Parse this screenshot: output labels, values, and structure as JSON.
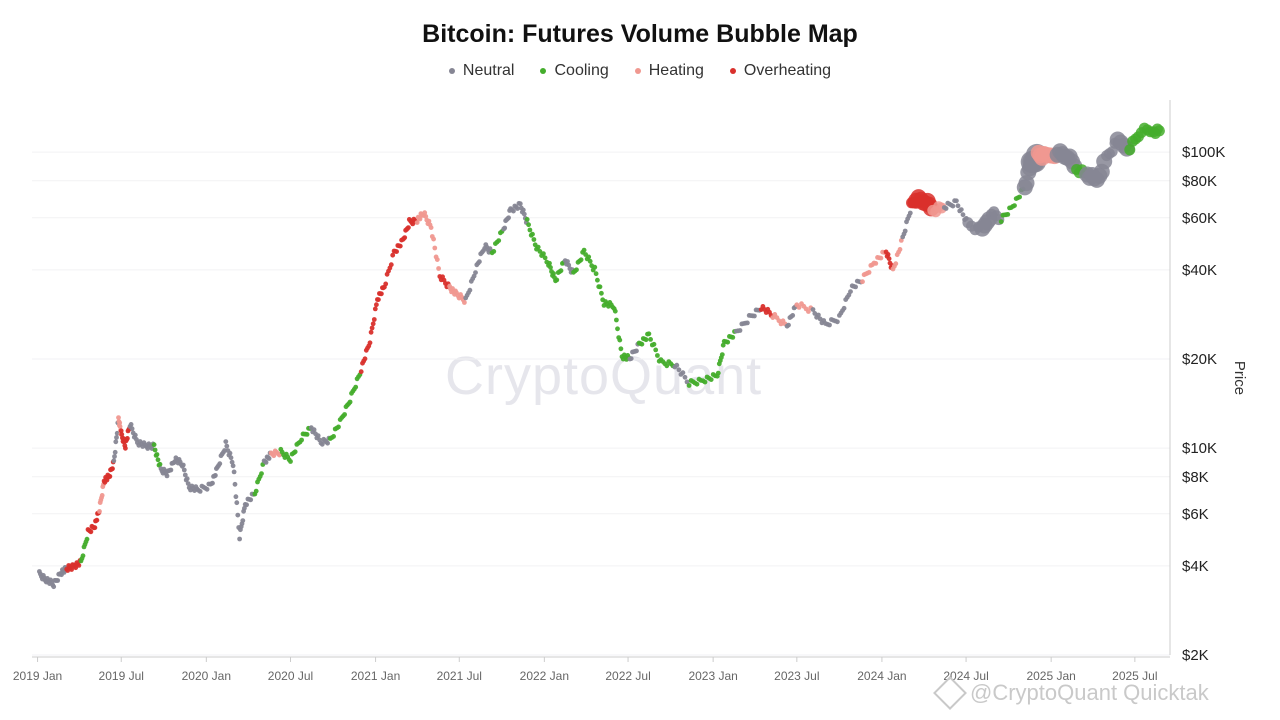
{
  "chart_data": {
    "type": "scatter",
    "title": "Bitcoin: Futures Volume Bubble Map",
    "ylabel": "Price",
    "y_scale": "log",
    "ylim": [
      2000,
      150000
    ],
    "xlim": [
      "2018-12-20",
      "2025-09-15"
    ],
    "grid": true,
    "legend_position": "top-center",
    "x_ticks": [
      {
        "date": "2019-01-01",
        "label": "2019 Jan"
      },
      {
        "date": "2019-07-01",
        "label": "2019 Jul"
      },
      {
        "date": "2020-01-01",
        "label": "2020 Jan"
      },
      {
        "date": "2020-07-01",
        "label": "2020 Jul"
      },
      {
        "date": "2021-01-01",
        "label": "2021 Jan"
      },
      {
        "date": "2021-07-01",
        "label": "2021 Jul"
      },
      {
        "date": "2022-01-01",
        "label": "2022 Jan"
      },
      {
        "date": "2022-07-01",
        "label": "2022 Jul"
      },
      {
        "date": "2023-01-01",
        "label": "2023 Jan"
      },
      {
        "date": "2023-07-01",
        "label": "2023 Jul"
      },
      {
        "date": "2024-01-01",
        "label": "2024 Jan"
      },
      {
        "date": "2024-07-01",
        "label": "2024 Jul"
      },
      {
        "date": "2025-01-01",
        "label": "2025 Jan"
      },
      {
        "date": "2025-07-01",
        "label": "2025 Jul"
      }
    ],
    "y_ticks": [
      {
        "value": 2000,
        "label": "$2K"
      },
      {
        "value": 4000,
        "label": "$4K"
      },
      {
        "value": 6000,
        "label": "$6K"
      },
      {
        "value": 8000,
        "label": "$8K"
      },
      {
        "value": 10000,
        "label": "$10K"
      },
      {
        "value": 20000,
        "label": "$20K"
      },
      {
        "value": 40000,
        "label": "$40K"
      },
      {
        "value": 60000,
        "label": "$60K"
      },
      {
        "value": 80000,
        "label": "$80K"
      },
      {
        "value": 100000,
        "label": "$100K"
      }
    ],
    "series": [
      {
        "name": "Neutral",
        "color": "#868694"
      },
      {
        "name": "Cooling",
        "color": "#44ad2c"
      },
      {
        "name": "Heating",
        "color": "#f09890"
      },
      {
        "name": "Overheating",
        "color": "#d9302c"
      }
    ],
    "points": [
      {
        "date": "2019-01-05",
        "price": 3750,
        "status": "Neutral",
        "size": 1
      },
      {
        "date": "2019-01-20",
        "price": 3600,
        "status": "Neutral",
        "size": 1
      },
      {
        "date": "2019-02-05",
        "price": 3450,
        "status": "Neutral",
        "size": 1
      },
      {
        "date": "2019-02-20",
        "price": 3800,
        "status": "Neutral",
        "size": 1
      },
      {
        "date": "2019-03-05",
        "price": 3900,
        "status": "Overheating",
        "size": 1
      },
      {
        "date": "2019-03-20",
        "price": 4000,
        "status": "Overheating",
        "size": 1
      },
      {
        "date": "2019-04-05",
        "price": 4100,
        "status": "Cooling",
        "size": 1
      },
      {
        "date": "2019-04-20",
        "price": 5200,
        "status": "Overheating",
        "size": 1
      },
      {
        "date": "2019-05-05",
        "price": 5500,
        "status": "Overheating",
        "size": 1
      },
      {
        "date": "2019-05-15",
        "price": 6200,
        "status": "Heating",
        "size": 1
      },
      {
        "date": "2019-05-25",
        "price": 7800,
        "status": "Overheating",
        "size": 1
      },
      {
        "date": "2019-06-05",
        "price": 8000,
        "status": "Overheating",
        "size": 1
      },
      {
        "date": "2019-06-15",
        "price": 9000,
        "status": "Neutral",
        "size": 1
      },
      {
        "date": "2019-06-25",
        "price": 12500,
        "status": "Heating",
        "size": 1
      },
      {
        "date": "2019-07-01",
        "price": 11200,
        "status": "Overheating",
        "size": 1
      },
      {
        "date": "2019-07-10",
        "price": 10200,
        "status": "Overheating",
        "size": 1
      },
      {
        "date": "2019-07-20",
        "price": 12000,
        "status": "Neutral",
        "size": 1
      },
      {
        "date": "2019-08-05",
        "price": 10500,
        "status": "Neutral",
        "size": 1
      },
      {
        "date": "2019-08-25",
        "price": 10100,
        "status": "Neutral",
        "size": 1
      },
      {
        "date": "2019-09-10",
        "price": 10200,
        "status": "Cooling",
        "size": 1
      },
      {
        "date": "2019-09-25",
        "price": 8400,
        "status": "Neutral",
        "size": 1
      },
      {
        "date": "2019-10-10",
        "price": 8200,
        "status": "Neutral",
        "size": 1
      },
      {
        "date": "2019-10-25",
        "price": 9200,
        "status": "Neutral",
        "size": 1
      },
      {
        "date": "2019-11-10",
        "price": 8800,
        "status": "Neutral",
        "size": 1
      },
      {
        "date": "2019-11-25",
        "price": 7400,
        "status": "Neutral",
        "size": 1
      },
      {
        "date": "2019-12-15",
        "price": 7200,
        "status": "Neutral",
        "size": 1
      },
      {
        "date": "2020-01-10",
        "price": 7500,
        "status": "Neutral",
        "size": 1
      },
      {
        "date": "2020-01-25",
        "price": 8500,
        "status": "Neutral",
        "size": 1
      },
      {
        "date": "2020-02-12",
        "price": 10300,
        "status": "Neutral",
        "size": 1
      },
      {
        "date": "2020-02-28",
        "price": 8900,
        "status": "Neutral",
        "size": 1
      },
      {
        "date": "2020-03-13",
        "price": 5000,
        "status": "Neutral",
        "size": 1
      },
      {
        "date": "2020-03-25",
        "price": 6500,
        "status": "Neutral",
        "size": 1
      },
      {
        "date": "2020-04-15",
        "price": 7000,
        "status": "Cooling",
        "size": 1
      },
      {
        "date": "2020-05-05",
        "price": 9000,
        "status": "Neutral",
        "size": 1
      },
      {
        "date": "2020-05-20",
        "price": 9500,
        "status": "Heating",
        "size": 1
      },
      {
        "date": "2020-06-10",
        "price": 9700,
        "status": "Cooling",
        "size": 1
      },
      {
        "date": "2020-07-01",
        "price": 9200,
        "status": "Cooling",
        "size": 1
      },
      {
        "date": "2020-07-25",
        "price": 10800,
        "status": "Cooling",
        "size": 1
      },
      {
        "date": "2020-08-15",
        "price": 11800,
        "status": "Neutral",
        "size": 1
      },
      {
        "date": "2020-09-05",
        "price": 10400,
        "status": "Neutral",
        "size": 1
      },
      {
        "date": "2020-09-25",
        "price": 10700,
        "status": "Cooling",
        "size": 1
      },
      {
        "date": "2020-10-20",
        "price": 12500,
        "status": "Cooling",
        "size": 1
      },
      {
        "date": "2020-11-10",
        "price": 15000,
        "status": "Cooling",
        "size": 1
      },
      {
        "date": "2020-12-01",
        "price": 18500,
        "status": "Overheating",
        "size": 1
      },
      {
        "date": "2020-12-20",
        "price": 23000,
        "status": "Overheating",
        "size": 1
      },
      {
        "date": "2021-01-05",
        "price": 32000,
        "status": "Overheating",
        "size": 1
      },
      {
        "date": "2021-01-20",
        "price": 35000,
        "status": "Overheating",
        "size": 1
      },
      {
        "date": "2021-02-10",
        "price": 46000,
        "status": "Overheating",
        "size": 1
      },
      {
        "date": "2021-03-01",
        "price": 50000,
        "status": "Overheating",
        "size": 1
      },
      {
        "date": "2021-03-15",
        "price": 58000,
        "status": "Overheating",
        "size": 1
      },
      {
        "date": "2021-04-01",
        "price": 59000,
        "status": "Heating",
        "size": 1
      },
      {
        "date": "2021-04-15",
        "price": 62000,
        "status": "Heating",
        "size": 1
      },
      {
        "date": "2021-05-01",
        "price": 56000,
        "status": "Heating",
        "size": 1
      },
      {
        "date": "2021-05-20",
        "price": 38000,
        "status": "Overheating",
        "size": 1
      },
      {
        "date": "2021-06-10",
        "price": 35000,
        "status": "Heating",
        "size": 1
      },
      {
        "date": "2021-06-25",
        "price": 33000,
        "status": "Heating",
        "size": 1
      },
      {
        "date": "2021-07-15",
        "price": 31500,
        "status": "Neutral",
        "size": 1
      },
      {
        "date": "2021-08-05",
        "price": 40000,
        "status": "Neutral",
        "size": 1
      },
      {
        "date": "2021-08-25",
        "price": 48000,
        "status": "Neutral",
        "size": 1
      },
      {
        "date": "2021-09-10",
        "price": 46000,
        "status": "Cooling",
        "size": 1
      },
      {
        "date": "2021-10-05",
        "price": 55000,
        "status": "Neutral",
        "size": 1
      },
      {
        "date": "2021-10-20",
        "price": 64000,
        "status": "Neutral",
        "size": 1
      },
      {
        "date": "2021-11-10",
        "price": 66000,
        "status": "Neutral",
        "size": 1
      },
      {
        "date": "2021-11-25",
        "price": 58000,
        "status": "Cooling",
        "size": 1
      },
      {
        "date": "2021-12-15",
        "price": 48000,
        "status": "Cooling",
        "size": 1
      },
      {
        "date": "2022-01-10",
        "price": 42000,
        "status": "Cooling",
        "size": 1
      },
      {
        "date": "2022-01-25",
        "price": 37000,
        "status": "Cooling",
        "size": 1
      },
      {
        "date": "2022-02-15",
        "price": 43000,
        "status": "Neutral",
        "size": 1
      },
      {
        "date": "2022-03-05",
        "price": 39000,
        "status": "Cooling",
        "size": 1
      },
      {
        "date": "2022-03-28",
        "price": 46000,
        "status": "Cooling",
        "size": 1
      },
      {
        "date": "2022-04-20",
        "price": 40000,
        "status": "Cooling",
        "size": 1
      },
      {
        "date": "2022-05-10",
        "price": 31000,
        "status": "Cooling",
        "size": 1
      },
      {
        "date": "2022-06-01",
        "price": 30000,
        "status": "Cooling",
        "size": 1
      },
      {
        "date": "2022-06-18",
        "price": 20500,
        "status": "Cooling",
        "size": 1
      },
      {
        "date": "2022-07-05",
        "price": 20000,
        "status": "Neutral",
        "size": 1
      },
      {
        "date": "2022-07-25",
        "price": 22500,
        "status": "Cooling",
        "size": 1
      },
      {
        "date": "2022-08-15",
        "price": 24000,
        "status": "Cooling",
        "size": 1
      },
      {
        "date": "2022-09-10",
        "price": 19500,
        "status": "Cooling",
        "size": 1
      },
      {
        "date": "2022-10-10",
        "price": 19200,
        "status": "Neutral",
        "size": 1
      },
      {
        "date": "2022-11-10",
        "price": 16500,
        "status": "Cooling",
        "size": 1
      },
      {
        "date": "2022-12-10",
        "price": 17000,
        "status": "Cooling",
        "size": 1
      },
      {
        "date": "2023-01-10",
        "price": 17500,
        "status": "Cooling",
        "size": 1
      },
      {
        "date": "2023-01-25",
        "price": 22800,
        "status": "Cooling",
        "size": 1
      },
      {
        "date": "2023-02-20",
        "price": 24500,
        "status": "Neutral",
        "size": 1
      },
      {
        "date": "2023-03-20",
        "price": 27500,
        "status": "Neutral",
        "size": 1
      },
      {
        "date": "2023-04-15",
        "price": 30000,
        "status": "Overheating",
        "size": 1
      },
      {
        "date": "2023-05-10",
        "price": 28000,
        "status": "Heating",
        "size": 1
      },
      {
        "date": "2023-06-10",
        "price": 26000,
        "status": "Neutral",
        "size": 1
      },
      {
        "date": "2023-07-01",
        "price": 30500,
        "status": "Heating",
        "size": 1
      },
      {
        "date": "2023-08-05",
        "price": 29200,
        "status": "Neutral",
        "size": 1
      },
      {
        "date": "2023-09-01",
        "price": 26000,
        "status": "Neutral",
        "size": 1
      },
      {
        "date": "2023-10-01",
        "price": 27500,
        "status": "Neutral",
        "size": 1
      },
      {
        "date": "2023-10-25",
        "price": 34500,
        "status": "Neutral",
        "size": 1
      },
      {
        "date": "2023-11-20",
        "price": 37000,
        "status": "Heating",
        "size": 1
      },
      {
        "date": "2023-12-15",
        "price": 42500,
        "status": "Heating",
        "size": 1
      },
      {
        "date": "2024-01-10",
        "price": 46000,
        "status": "Overheating",
        "size": 1
      },
      {
        "date": "2024-01-25",
        "price": 40000,
        "status": "Heating",
        "size": 1
      },
      {
        "date": "2024-02-15",
        "price": 51000,
        "status": "Neutral",
        "size": 1
      },
      {
        "date": "2024-03-05",
        "price": 66000,
        "status": "Overheating",
        "size": 2
      },
      {
        "date": "2024-03-15",
        "price": 70000,
        "status": "Overheating",
        "size": 3
      },
      {
        "date": "2024-04-05",
        "price": 68000,
        "status": "Overheating",
        "size": 3
      },
      {
        "date": "2024-04-20",
        "price": 64000,
        "status": "Heating",
        "size": 2
      },
      {
        "date": "2024-05-15",
        "price": 65000,
        "status": "Neutral",
        "size": 1
      },
      {
        "date": "2024-06-10",
        "price": 68000,
        "status": "Neutral",
        "size": 1
      },
      {
        "date": "2024-07-05",
        "price": 57000,
        "status": "Neutral",
        "size": 2
      },
      {
        "date": "2024-08-05",
        "price": 54000,
        "status": "Neutral",
        "size": 3
      },
      {
        "date": "2024-08-25",
        "price": 63000,
        "status": "Neutral",
        "size": 2
      },
      {
        "date": "2024-09-15",
        "price": 59000,
        "status": "Cooling",
        "size": 1
      },
      {
        "date": "2024-10-10",
        "price": 66000,
        "status": "Cooling",
        "size": 1
      },
      {
        "date": "2024-11-05",
        "price": 76000,
        "status": "Neutral",
        "size": 3
      },
      {
        "date": "2024-11-20",
        "price": 92000,
        "status": "Neutral",
        "size": 4
      },
      {
        "date": "2024-12-05",
        "price": 98000,
        "status": "Heating",
        "size": 3
      },
      {
        "date": "2024-12-20",
        "price": 96000,
        "status": "Heating",
        "size": 3
      },
      {
        "date": "2025-01-15",
        "price": 100000,
        "status": "Neutral",
        "size": 3
      },
      {
        "date": "2025-02-05",
        "price": 97000,
        "status": "Neutral",
        "size": 3
      },
      {
        "date": "2025-02-25",
        "price": 88000,
        "status": "Cooling",
        "size": 2
      },
      {
        "date": "2025-03-20",
        "price": 84000,
        "status": "Neutral",
        "size": 3
      },
      {
        "date": "2025-04-10",
        "price": 80000,
        "status": "Neutral",
        "size": 3
      },
      {
        "date": "2025-05-01",
        "price": 96000,
        "status": "Neutral",
        "size": 2
      },
      {
        "date": "2025-05-25",
        "price": 108000,
        "status": "Neutral",
        "size": 3
      },
      {
        "date": "2025-06-20",
        "price": 104000,
        "status": "Cooling",
        "size": 2
      },
      {
        "date": "2025-07-15",
        "price": 118000,
        "status": "Cooling",
        "size": 2
      },
      {
        "date": "2025-08-10",
        "price": 118000,
        "status": "Cooling",
        "size": 2
      }
    ]
  },
  "watermark": "CryptoQuant",
  "credit": "@CryptoQuant Quicktak"
}
